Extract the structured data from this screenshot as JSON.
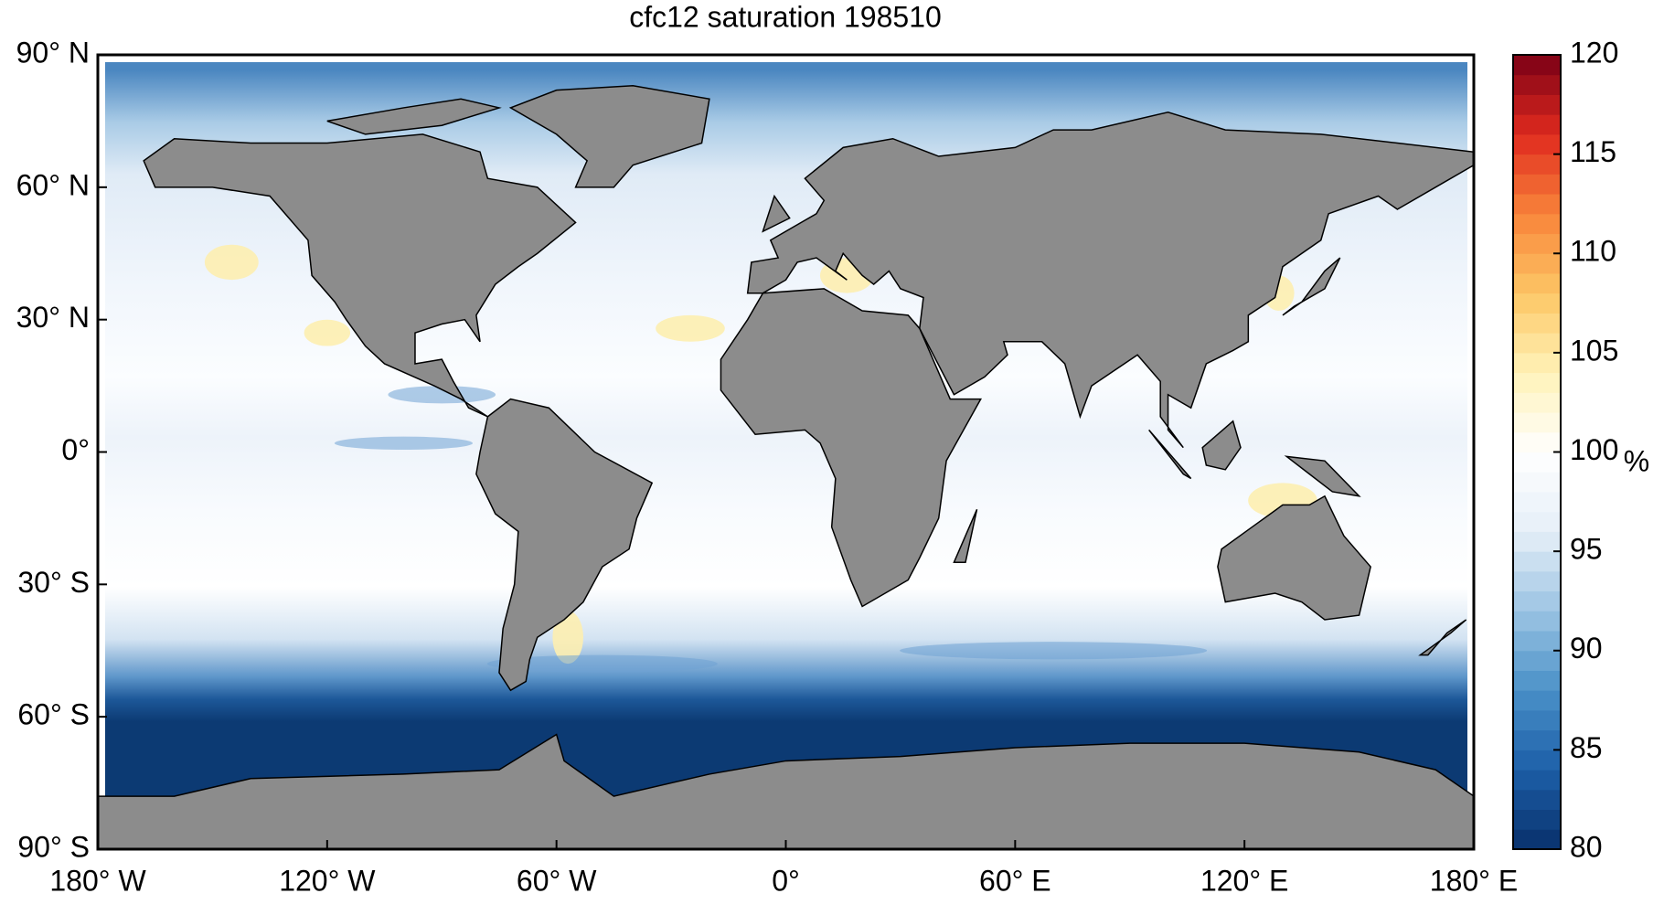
{
  "chart_data": {
    "type": "map",
    "title": "cfc12 saturation 198510",
    "xlim": [
      -180,
      180
    ],
    "ylim": [
      -90,
      90
    ],
    "xticks": [
      {
        "value": -180,
        "label": "180° W"
      },
      {
        "value": -120,
        "label": "120° W"
      },
      {
        "value": -60,
        "label": "60° W"
      },
      {
        "value": 0,
        "label": "0°"
      },
      {
        "value": 60,
        "label": "60° E"
      },
      {
        "value": 120,
        "label": "120° E"
      },
      {
        "value": 180,
        "label": "180° E"
      }
    ],
    "yticks": [
      {
        "value": -90,
        "label": "90° S"
      },
      {
        "value": -60,
        "label": "60° S"
      },
      {
        "value": -30,
        "label": "30° S"
      },
      {
        "value": 0,
        "label": "0°"
      },
      {
        "value": 30,
        "label": "30° N"
      },
      {
        "value": 60,
        "label": "60° N"
      },
      {
        "value": 90,
        "label": "90° N"
      }
    ],
    "colorbar": {
      "label": "%",
      "lim": [
        80,
        120
      ],
      "ticks": [
        80,
        85,
        90,
        95,
        100,
        105,
        110,
        115,
        120
      ],
      "colormap": [
        "#08306b",
        "#1c5fa8",
        "#4a90c8",
        "#9cc4e3",
        "#e6eff8",
        "#ffffff",
        "#fff2b8",
        "#fdc665",
        "#f8843a",
        "#e02a1e",
        "#7a0016"
      ],
      "land_color": "#8c8c8c"
    }
  }
}
